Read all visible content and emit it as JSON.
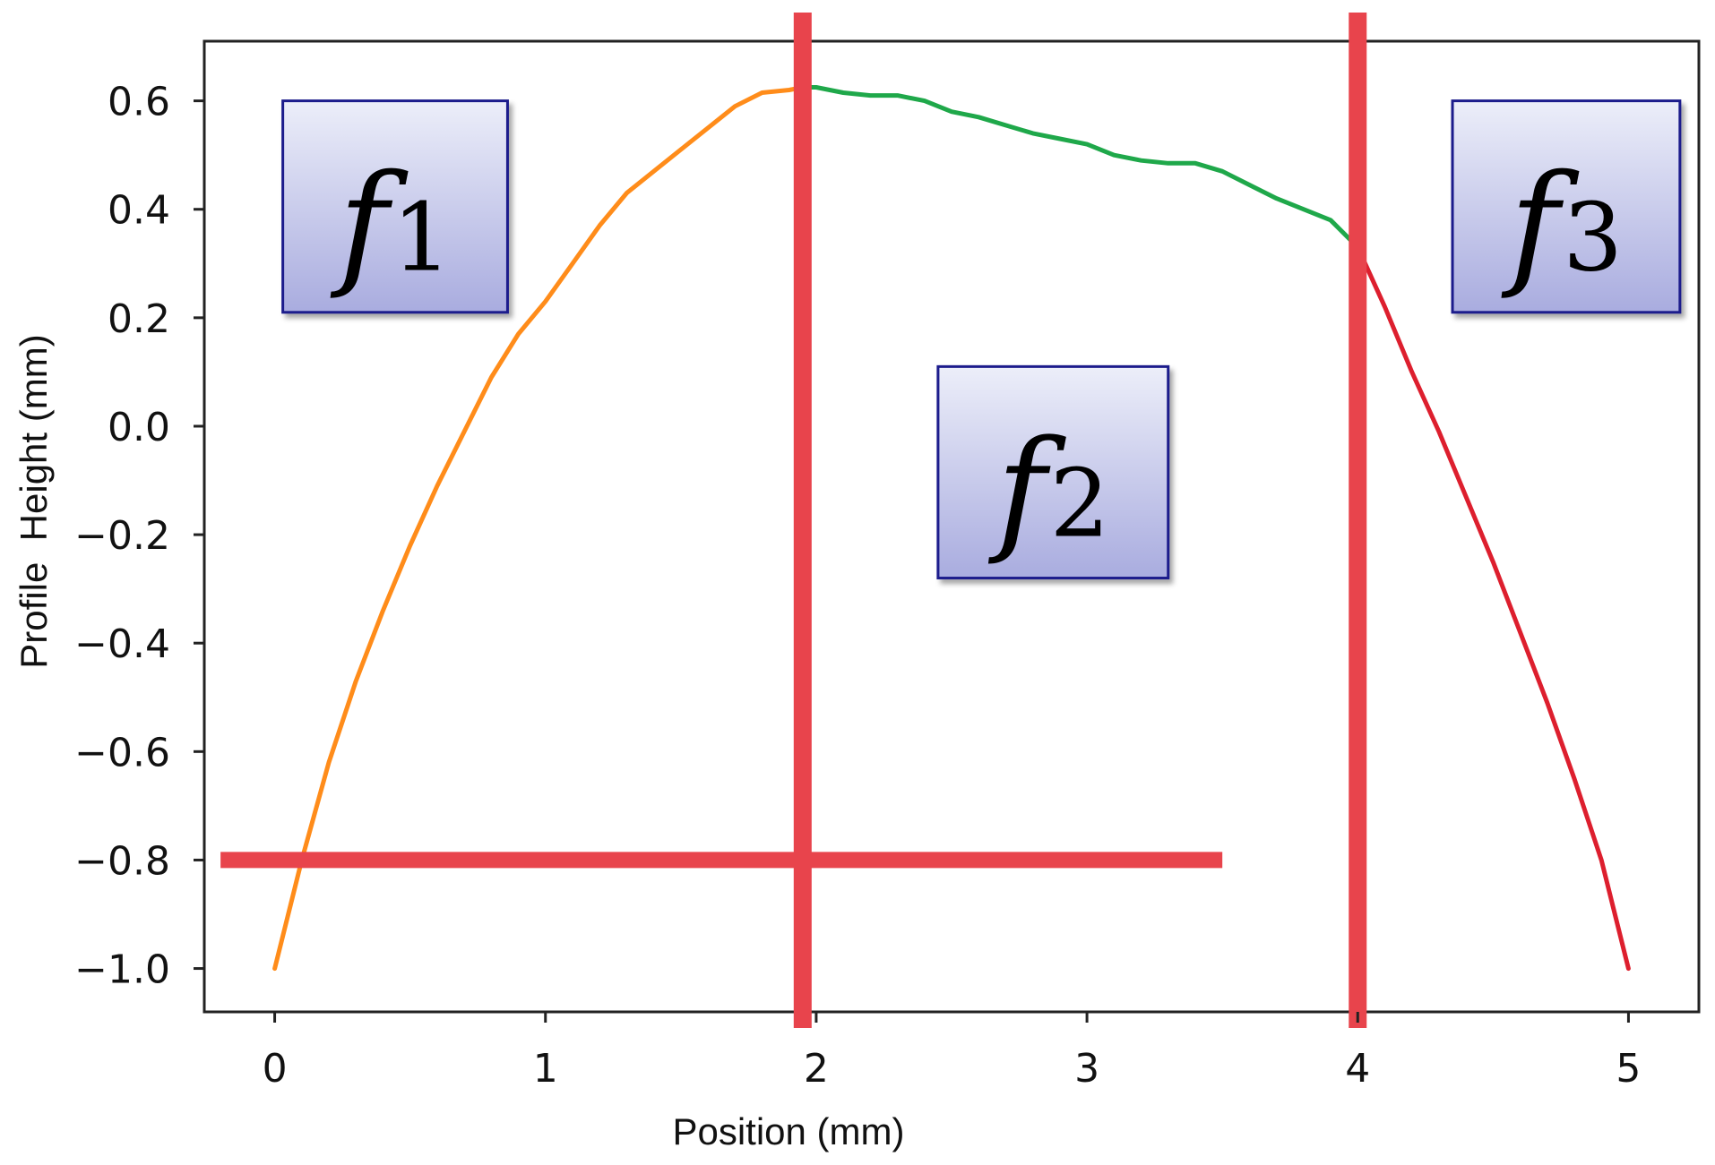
{
  "chart_data": {
    "type": "line",
    "xlabel": "Position (mm)",
    "ylabel": "Profile  Height (mm)",
    "xlim": [
      -0.26,
      5.26
    ],
    "ylim": [
      -1.08,
      0.71
    ],
    "xticks": [
      0,
      1,
      2,
      3,
      4,
      5
    ],
    "yticks": [
      0.6,
      0.4,
      0.2,
      0.0,
      -0.2,
      -0.4,
      -0.6,
      -0.8,
      -1.0
    ],
    "ytick_labels": [
      "0.6",
      "0.4",
      "0.2",
      "0.0",
      "−0.2",
      "−0.4",
      "−0.6",
      "−0.8",
      "−1.0"
    ],
    "grid": false,
    "series": [
      {
        "color": "#ff8c1a",
        "x": [
          0,
          0.1,
          0.2,
          0.3,
          0.4,
          0.5,
          0.6,
          0.7,
          0.8,
          0.9,
          1.0,
          1.1,
          1.2,
          1.3,
          1.4,
          1.5,
          1.6,
          1.7,
          1.8,
          1.9,
          1.95
        ],
        "y": [
          -1.0,
          -0.8,
          -0.62,
          -0.47,
          -0.34,
          -0.22,
          -0.11,
          -0.01,
          0.09,
          0.17,
          0.23,
          0.3,
          0.37,
          0.43,
          0.47,
          0.51,
          0.55,
          0.59,
          0.615,
          0.62,
          0.625
        ]
      },
      {
        "color": "#1fa84a",
        "x": [
          1.95,
          2.0,
          2.1,
          2.2,
          2.3,
          2.4,
          2.5,
          2.6,
          2.7,
          2.8,
          2.9,
          3.0,
          3.1,
          3.2,
          3.3,
          3.4,
          3.5,
          3.6,
          3.7,
          3.8,
          3.9,
          4.0
        ],
        "y": [
          0.625,
          0.625,
          0.615,
          0.61,
          0.61,
          0.6,
          0.58,
          0.57,
          0.555,
          0.54,
          0.53,
          0.52,
          0.5,
          0.49,
          0.485,
          0.485,
          0.47,
          0.445,
          0.42,
          0.4,
          0.38,
          0.33
        ]
      },
      {
        "color": "#dd1f2e",
        "x": [
          4.0,
          4.1,
          4.2,
          4.3,
          4.4,
          4.5,
          4.6,
          4.7,
          4.8,
          4.9,
          5.0
        ],
        "y": [
          0.33,
          0.22,
          0.1,
          -0.01,
          -0.13,
          -0.25,
          -0.38,
          -0.51,
          -0.65,
          -0.8,
          -1.0
        ]
      }
    ],
    "annotations": {
      "vertical_lines_x": [
        1.95,
        4.0
      ],
      "horizontal_line": {
        "y": -0.8,
        "x_start": -0.2,
        "x_end": 3.5
      },
      "line_color": "#e8444c",
      "boxes": [
        {
          "label": "f",
          "subscript": "1",
          "x0": 0.03,
          "x1": 0.86,
          "y0": 0.21,
          "y1": 0.6
        },
        {
          "label": "f",
          "subscript": "2",
          "x0": 2.45,
          "x1": 3.3,
          "y0": -0.28,
          "y1": 0.11
        },
        {
          "label": "f",
          "subscript": "3",
          "x0": 4.35,
          "x1": 5.19,
          "y0": 0.21,
          "y1": 0.6
        }
      ]
    }
  }
}
